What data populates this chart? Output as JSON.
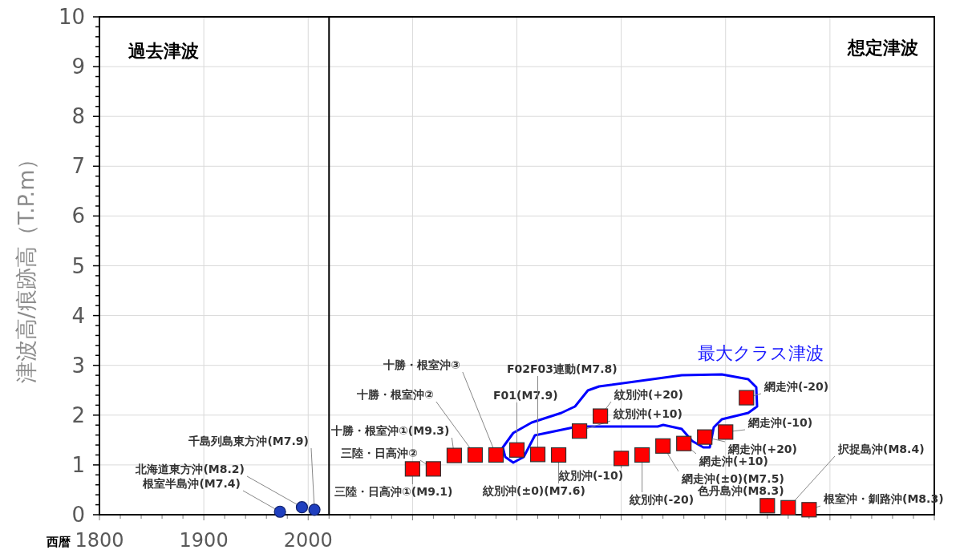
{
  "chart_data": {
    "type": "scatter",
    "xlabel": "西暦",
    "ylabel": "津波高/痕跡高（T.P.m）",
    "xlim": [
      1800,
      2600
    ],
    "xticks": [
      1800,
      1900,
      2000,
      {
        "value": 2100,
        "label": null
      },
      {
        "value": 2200,
        "label": null
      },
      {
        "value": 2300,
        "label": null
      },
      {
        "value": 2400,
        "label": null
      },
      {
        "value": 2500,
        "label": null
      },
      {
        "value": 2600,
        "label": null
      }
    ],
    "ylim": [
      0,
      10
    ],
    "yticks": [
      0,
      1,
      2,
      3,
      4,
      5,
      6,
      7,
      8,
      9,
      10
    ],
    "grid": true,
    "series": [
      {
        "color": "#1f3fbf",
        "marker": "circle",
        "x": [
          1973,
          1994,
          2006
        ],
        "values": [
          0.06,
          0.15,
          0.1
        ]
      },
      {
        "color": "#ff0000",
        "marker": "square",
        "x": [
          2100,
          2120,
          2140,
          2160,
          2180,
          2200,
          2220,
          2240,
          2260,
          2280,
          2300,
          2320,
          2340,
          2360,
          2380,
          2400,
          2420,
          2440,
          2460,
          2480
        ],
        "values": [
          0.92,
          0.92,
          1.19,
          1.2,
          1.2,
          1.3,
          1.21,
          1.2,
          1.68,
          1.98,
          1.13,
          1.2,
          1.38,
          1.43,
          1.56,
          1.66,
          2.35,
          0.18,
          0.14,
          0.1
        ]
      }
    ],
    "ref_lines": [
      {
        "axis": "x",
        "value": 2020,
        "color": "#000000"
      }
    ],
    "annotations": [
      "過去津波",
      "想定津波",
      "最大クラス津波",
      {
        "text": "根室半島沖(M7.4)",
        "x": 1973,
        "y": 0.06
      },
      {
        "text": "北海道東方沖(M8.2)",
        "x": 1994,
        "y": 0.15
      },
      {
        "text": "千島列島東方沖(M7.9)",
        "x": 2006,
        "y": 0.1
      },
      {
        "text": "三陸・日高沖①(M9.1)",
        "x": 2100,
        "y": 0.92
      },
      {
        "text": "三陸・日高沖②",
        "x": 2120,
        "y": 0.92
      },
      {
        "text": "十勝・根室沖①(M9.3)",
        "x": 2140,
        "y": 1.19
      },
      {
        "text": "十勝・根室沖②",
        "x": 2160,
        "y": 1.2
      },
      {
        "text": "十勝・根室沖③",
        "x": 2180,
        "y": 1.2
      },
      {
        "text": "F01(M7.9)",
        "x": 2200,
        "y": 1.3
      },
      {
        "text": "F02F03連動(M7.8)",
        "x": 2220,
        "y": 1.21
      },
      {
        "text": "紋別沖(±0)(M7.6)",
        "x": 2240,
        "y": 1.2
      },
      {
        "text": "紋別沖(+10)",
        "x": 2260,
        "y": 1.68
      },
      {
        "text": "紋別沖(+20)",
        "x": 2280,
        "y": 1.98
      },
      {
        "text": "紋別沖(-10)",
        "x": 2300,
        "y": 1.13
      },
      {
        "text": "紋別沖(-20)",
        "x": 2320,
        "y": 1.2
      },
      {
        "text": "網走沖(±0)(M7.5)",
        "x": 2340,
        "y": 1.38
      },
      {
        "text": "網走沖(+10)",
        "x": 2360,
        "y": 1.43
      },
      {
        "text": "網走沖(+20)",
        "x": 2380,
        "y": 1.56
      },
      {
        "text": "網走沖(-10)",
        "x": 2400,
        "y": 1.66
      },
      {
        "text": "網走沖(-20)",
        "x": 2420,
        "y": 2.35
      },
      {
        "text": "色丹島沖(M8.3)",
        "x": 2440,
        "y": 0.18
      },
      {
        "text": "択捉島沖(M8.4)",
        "x": 2460,
        "y": 0.14
      },
      {
        "text": "根室沖・釧路沖(M8.3)",
        "x": 2480,
        "y": 0.1
      }
    ]
  }
}
